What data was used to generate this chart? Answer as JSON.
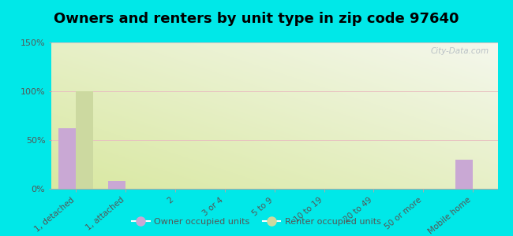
{
  "title": "Owners and renters by unit type in zip code 97640",
  "categories": [
    "1, detached",
    "1, attached",
    "2",
    "3 or 4",
    "5 to 9",
    "10 to 19",
    "20 to 49",
    "50 or more",
    "Mobile home"
  ],
  "owner_values": [
    62,
    8,
    0,
    0,
    0,
    0,
    0,
    0,
    30
  ],
  "renter_values": [
    100,
    0,
    0,
    0,
    0,
    0,
    0,
    0,
    0
  ],
  "owner_color": "#c9a8d4",
  "renter_color": "#ccd9a0",
  "background_color": "#00e8e8",
  "ylim": [
    0,
    150
  ],
  "yticks": [
    0,
    50,
    100,
    150
  ],
  "ytick_labels": [
    "0%",
    "50%",
    "100%",
    "150%"
  ],
  "watermark": "City-Data.com",
  "legend_owner": "Owner occupied units",
  "legend_renter": "Renter occupied units",
  "bar_width": 0.35,
  "title_fontsize": 13
}
